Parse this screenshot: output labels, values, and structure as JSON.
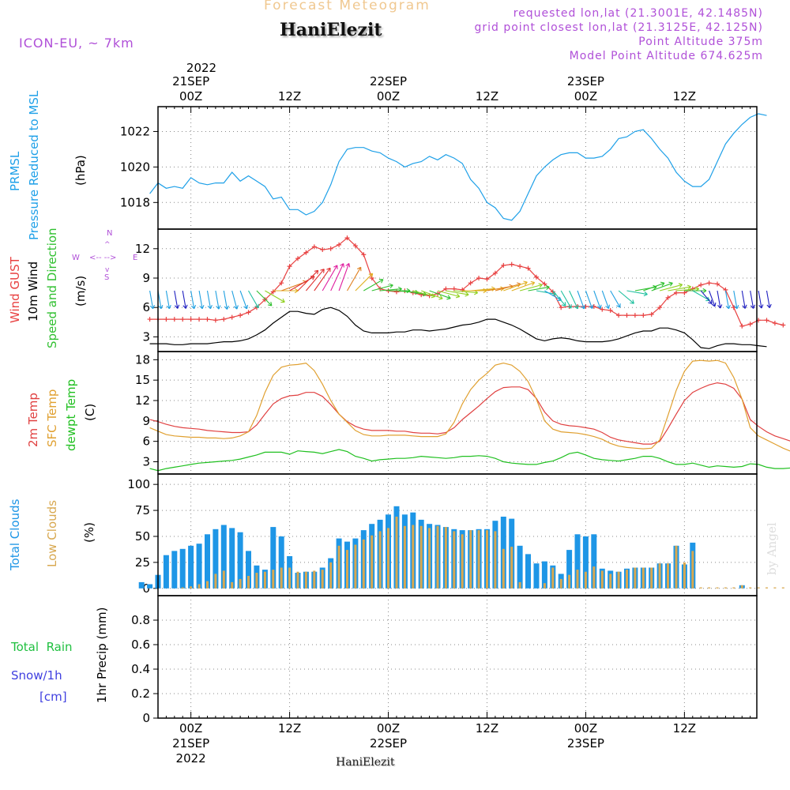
{
  "header": {
    "meteogram_title": "Forecast Meteogram",
    "model": "ICON-EU, ~ 7km",
    "station": "HaniElezit",
    "requested": "requested lon,lat (21.3001E, 42.1485N)",
    "grid_point": "grid point closest lon,lat (21.3125E, 42.125N)",
    "point_altitude": "Point Altitude 375m",
    "model_altitude": "Model Point Altitude 674.625m"
  },
  "time_axis": {
    "top_year": "2022",
    "top_labels": [
      {
        "h": 0,
        "lines": [
          "21SEP",
          "00Z"
        ]
      },
      {
        "h": 12,
        "lines": [
          "12Z"
        ]
      },
      {
        "h": 24,
        "lines": [
          "22SEP",
          "00Z"
        ]
      },
      {
        "h": 36,
        "lines": [
          "12Z"
        ]
      },
      {
        "h": 48,
        "lines": [
          "23SEP",
          "00Z"
        ]
      },
      {
        "h": 60,
        "lines": [
          "12Z"
        ]
      }
    ],
    "bottom_labels": [
      {
        "h": 0,
        "lines": [
          "00Z",
          "21SEP",
          "2022"
        ]
      },
      {
        "h": 12,
        "lines": [
          "12Z"
        ]
      },
      {
        "h": 24,
        "lines": [
          "00Z",
          "22SEP"
        ]
      },
      {
        "h": 36,
        "lines": [
          "12Z"
        ]
      },
      {
        "h": 48,
        "lines": [
          "00Z",
          "23SEP"
        ]
      },
      {
        "h": 60,
        "lines": [
          "12Z"
        ]
      }
    ]
  },
  "watermark": "by Angel",
  "colors": {
    "pressure": "#1ea0e8",
    "gust": "#e84040",
    "wind": "#000000",
    "wind_dir": "#30c030",
    "temp": "#e04040",
    "sfc_temp": "#e0a030",
    "dewpt": "#20c020",
    "total_clouds": "#1e96e6",
    "low_clouds": "#d8a850",
    "rain": "#20c040",
    "snow": "#4040e0",
    "compass": "#b050d8",
    "grid": "#888888"
  },
  "chart_data": [
    {
      "type": "line",
      "title": "PRMSL Pressure Reduced to MSL",
      "label_lines": [
        {
          "text": "PRMSL",
          "color": "#1ea0e8"
        },
        {
          "text": "Pressure Reduced to MSL",
          "color": "#1ea0e8"
        },
        {
          "text": "(hPa)",
          "color": "#000000"
        }
      ],
      "ylabel": "(hPa)",
      "ylim": [
        1016.5,
        1023.4
      ],
      "yticks": [
        1018,
        1020,
        1022
      ],
      "x_hours_start": -5,
      "x_step_hours": 1,
      "series": [
        {
          "name": "PRMSL",
          "values": [
            1018.5,
            1019.1,
            1018.8,
            1018.9,
            1018.8,
            1019.4,
            1019.1,
            1019.0,
            1019.1,
            1019.1,
            1019.7,
            1019.2,
            1019.5,
            1019.2,
            1018.9,
            1018.2,
            1018.3,
            1017.6,
            1017.6,
            1017.3,
            1017.5,
            1018.0,
            1019.0,
            1020.3,
            1021.0,
            1021.1,
            1021.1,
            1020.9,
            1020.8,
            1020.5,
            1020.3,
            1020.0,
            1020.2,
            1020.3,
            1020.6,
            1020.4,
            1020.7,
            1020.5,
            1020.2,
            1019.3,
            1018.8,
            1018.0,
            1017.7,
            1017.1,
            1017.0,
            1017.5,
            1018.5,
            1019.5,
            1020.0,
            1020.4,
            1020.7,
            1020.8,
            1020.8,
            1020.5,
            1020.5,
            1020.6,
            1021.0,
            1021.6,
            1021.7,
            1022.0,
            1022.1,
            1021.6,
            1021.0,
            1020.5,
            1019.7,
            1019.2,
            1018.9,
            1018.9,
            1019.3,
            1020.3,
            1021.3,
            1021.9,
            1022.4,
            1022.8,
            1023.0,
            1022.9
          ]
        }
      ]
    },
    {
      "type": "line",
      "title": "Wind GUST, 10m Wind Speed and Direction",
      "label_lines": [
        {
          "text": "Wind GUST",
          "color": "#e84040"
        },
        {
          "text": "10m Wind",
          "color": "#000000"
        },
        {
          "text": "Speed and Direction",
          "color": "#30c030"
        },
        {
          "text": "(m/s)",
          "color": "#000000"
        }
      ],
      "compass": {
        "n": "N",
        "e": "E",
        "s": "S",
        "w": "W"
      },
      "ylabel": "(m/s)",
      "ylim": [
        1.5,
        14
      ],
      "yticks": [
        3,
        6,
        9,
        12
      ],
      "x_hours_start": -5,
      "x_step_hours": 1,
      "series": [
        {
          "name": "Wind GUST",
          "values": [
            4.8,
            4.8,
            4.8,
            4.8,
            4.8,
            4.8,
            4.8,
            4.8,
            4.7,
            4.8,
            5.0,
            5.2,
            5.5,
            6.0,
            6.8,
            7.6,
            8.5,
            10.2,
            11.0,
            11.6,
            12.2,
            11.9,
            12.0,
            12.4,
            13.1,
            12.3,
            11.4,
            9.0,
            7.9,
            7.7,
            7.6,
            7.7,
            7.5,
            7.3,
            7.2,
            7.4,
            7.9,
            7.9,
            7.8,
            8.5,
            9.0,
            8.9,
            9.5,
            10.3,
            10.4,
            10.2,
            10.0,
            9.1,
            8.4,
            7.6,
            6.0,
            6.1,
            6.1,
            6.1,
            6.1,
            5.8,
            5.7,
            5.2,
            5.2,
            5.2,
            5.2,
            5.3,
            6.0,
            7.0,
            7.5,
            7.5,
            7.9,
            8.3,
            8.5,
            8.4,
            7.8,
            6.0,
            4.1,
            4.3,
            4.7,
            4.7,
            4.4,
            4.2
          ]
        },
        {
          "name": "10m Wind",
          "values": [
            2.3,
            2.3,
            2.3,
            2.2,
            2.2,
            2.3,
            2.3,
            2.3,
            2.4,
            2.5,
            2.5,
            2.6,
            2.8,
            3.2,
            3.7,
            4.4,
            5.0,
            5.6,
            5.6,
            5.4,
            5.3,
            5.8,
            6.0,
            5.7,
            5.1,
            4.2,
            3.6,
            3.4,
            3.4,
            3.4,
            3.5,
            3.5,
            3.7,
            3.7,
            3.6,
            3.7,
            3.8,
            4.0,
            4.2,
            4.3,
            4.5,
            4.8,
            4.8,
            4.5,
            4.2,
            3.8,
            3.3,
            2.8,
            2.6,
            2.8,
            2.9,
            2.8,
            2.6,
            2.5,
            2.5,
            2.5,
            2.6,
            2.8,
            3.1,
            3.4,
            3.6,
            3.6,
            3.9,
            3.9,
            3.7,
            3.4,
            2.7,
            1.9,
            1.8,
            2.1,
            2.3,
            2.3,
            2.2,
            2.2,
            2.1,
            2.0
          ]
        },
        {
          "name": "Wind direction (deg)",
          "values": [
            350,
            350,
            350,
            350,
            350,
            350,
            350,
            350,
            350,
            350,
            345,
            340,
            330,
            315,
            300,
            270,
            250,
            240,
            225,
            220,
            215,
            210,
            205,
            200,
            210,
            225,
            240,
            255,
            265,
            270,
            275,
            280,
            285,
            290,
            290,
            285,
            280,
            275,
            270,
            265,
            265,
            260,
            255,
            250,
            250,
            255,
            260,
            280,
            300,
            320,
            330,
            335,
            340,
            340,
            340,
            340,
            330,
            310,
            280,
            260,
            250,
            250,
            255,
            260,
            265,
            270,
            300,
            320,
            340,
            350,
            350,
            350,
            350,
            350,
            350,
            350
          ]
        }
      ]
    },
    {
      "type": "line",
      "title": "2m Temp, SFC Temp, dewpt Temp",
      "label_lines": [
        {
          "text": "2m Temp",
          "color": "#e04040"
        },
        {
          "text": "SFC Temp",
          "color": "#e0a030"
        },
        {
          "text": "dewpt Temp",
          "color": "#20c020"
        },
        {
          "text": "(C)",
          "color": "#000000"
        }
      ],
      "ylabel": "(C)",
      "ylim": [
        1.2,
        19.2
      ],
      "yticks": [
        3,
        6,
        9,
        12,
        15,
        18
      ],
      "x_hours_start": -5,
      "x_step_hours": 1,
      "series": [
        {
          "name": "2m Temp",
          "values": [
            9.2,
            8.9,
            8.5,
            8.2,
            8.0,
            7.9,
            7.8,
            7.6,
            7.5,
            7.4,
            7.3,
            7.3,
            7.4,
            8.4,
            10.0,
            11.5,
            12.3,
            12.7,
            12.8,
            13.2,
            13.2,
            12.6,
            11.4,
            10.0,
            8.9,
            8.2,
            7.8,
            7.6,
            7.6,
            7.6,
            7.5,
            7.5,
            7.3,
            7.2,
            7.2,
            7.1,
            7.3,
            8.0,
            9.2,
            10.2,
            11.2,
            12.3,
            13.3,
            13.9,
            14.0,
            14.0,
            13.6,
            12.3,
            10.3,
            9.0,
            8.5,
            8.3,
            8.2,
            8.0,
            7.8,
            7.3,
            6.6,
            6.2,
            6.0,
            5.8,
            5.6,
            5.6,
            6.0,
            7.9,
            10.0,
            12.0,
            13.2,
            13.8,
            14.3,
            14.6,
            14.4,
            13.8,
            12.2,
            9.2,
            8.2,
            7.4,
            6.8,
            6.4,
            6.0,
            5.7,
            5.6
          ]
        },
        {
          "name": "SFC Temp",
          "values": [
            8.0,
            7.5,
            7.0,
            6.8,
            6.7,
            6.6,
            6.6,
            6.5,
            6.5,
            6.4,
            6.5,
            6.8,
            7.4,
            9.8,
            13.2,
            15.7,
            16.9,
            17.2,
            17.3,
            17.5,
            16.4,
            14.4,
            12.0,
            10.0,
            8.8,
            7.6,
            7.0,
            6.8,
            6.8,
            6.9,
            6.9,
            6.9,
            6.8,
            6.7,
            6.7,
            6.7,
            7.1,
            8.8,
            11.5,
            13.6,
            15.0,
            16.0,
            17.2,
            17.5,
            17.2,
            16.3,
            14.8,
            12.2,
            9.0,
            7.8,
            7.4,
            7.3,
            7.2,
            7.0,
            6.7,
            6.3,
            5.7,
            5.3,
            5.1,
            5.0,
            4.9,
            5.0,
            6.2,
            9.8,
            13.5,
            16.3,
            17.8,
            17.9,
            17.8,
            17.9,
            17.5,
            15.4,
            12.2,
            8.0,
            6.8,
            6.2,
            5.6,
            5.0,
            4.5,
            4.1,
            3.8
          ]
        },
        {
          "name": "dewpt Temp",
          "values": [
            2.0,
            1.7,
            2.0,
            2.2,
            2.4,
            2.6,
            2.8,
            2.9,
            3.0,
            3.1,
            3.2,
            3.4,
            3.7,
            4.0,
            4.4,
            4.4,
            4.4,
            4.1,
            4.6,
            4.5,
            4.4,
            4.2,
            4.5,
            4.8,
            4.5,
            3.8,
            3.5,
            3.1,
            3.3,
            3.4,
            3.5,
            3.5,
            3.6,
            3.8,
            3.7,
            3.6,
            3.5,
            3.6,
            3.8,
            3.8,
            3.9,
            3.8,
            3.5,
            3.0,
            2.8,
            2.7,
            2.6,
            2.6,
            2.9,
            3.1,
            3.6,
            4.2,
            4.4,
            4.0,
            3.5,
            3.3,
            3.2,
            3.1,
            3.3,
            3.5,
            3.8,
            3.8,
            3.5,
            3.0,
            2.6,
            2.6,
            2.8,
            2.5,
            2.2,
            2.4,
            2.3,
            2.2,
            2.3,
            2.7,
            2.6,
            2.2,
            2.0,
            2.0,
            2.1,
            2.2,
            2.4
          ]
        }
      ]
    },
    {
      "type": "bar",
      "title": "Total Clouds, Low Clouds",
      "label_lines": [
        {
          "text": "Total Clouds",
          "color": "#1e96e6"
        },
        {
          "text": "Low Clouds",
          "color": "#d8a850"
        },
        {
          "text": "(%)",
          "color": "#000000"
        }
      ],
      "ylabel": "(%)",
      "ylim": [
        -7,
        110
      ],
      "yticks": [
        0,
        25,
        50,
        75,
        100
      ],
      "x_hours_start": -6,
      "x_step_hours": 1,
      "series": [
        {
          "name": "Total Clouds",
          "values": [
            6,
            4,
            13,
            32,
            36,
            38,
            41,
            43,
            52,
            57,
            61,
            58,
            54,
            36,
            22,
            18,
            59,
            50,
            31,
            15,
            16,
            16,
            20,
            29,
            48,
            45,
            48,
            56,
            62,
            66,
            71,
            79,
            71,
            73,
            66,
            62,
            61,
            59,
            57,
            56,
            56,
            57,
            57,
            65,
            69,
            67,
            41,
            33,
            24,
            26,
            22,
            14,
            37,
            52,
            50,
            52,
            19,
            17,
            16,
            19,
            20,
            20,
            20,
            24,
            24,
            41,
            23,
            44,
            0,
            0,
            0,
            0,
            0,
            3,
            0,
            0,
            0,
            0,
            0,
            0
          ]
        },
        {
          "name": "Low Clouds",
          "values": [
            0,
            0,
            0,
            0,
            0,
            1,
            2,
            4,
            7,
            14,
            17,
            6,
            9,
            12,
            15,
            16,
            18,
            20,
            20,
            16,
            16,
            17,
            18,
            25,
            41,
            37,
            42,
            47,
            51,
            55,
            58,
            69,
            60,
            61,
            60,
            58,
            60,
            59,
            55,
            52,
            56,
            56,
            56,
            55,
            38,
            40,
            6,
            0,
            0,
            5,
            20,
            9,
            13,
            18,
            16,
            21,
            17,
            14,
            16,
            18,
            20,
            20,
            20,
            24,
            24,
            41,
            25,
            36,
            1,
            1,
            1,
            1,
            1,
            3,
            1,
            1,
            1,
            1,
            1,
            1
          ]
        }
      ]
    },
    {
      "type": "bar",
      "title": "1hr Precip (mm)",
      "label_lines": [
        {
          "text": "Total  Rain",
          "color": "#20c040"
        },
        {
          "text": "Snow/1h",
          "color": "#4040e0"
        },
        {
          "text": "[cm]",
          "color": "#4040e0"
        }
      ],
      "ylabel": "1hr Precip (mm)",
      "ylim": [
        0,
        1.0
      ],
      "yticks": [
        0,
        0.2,
        0.4,
        0.6,
        0.8
      ],
      "ytick_labels": [
        "0",
        "0.2",
        "0.4",
        "0.6",
        "0.8"
      ],
      "series": [
        {
          "name": "Total Rain",
          "values": []
        },
        {
          "name": "Snow/1h",
          "values": []
        }
      ]
    }
  ]
}
